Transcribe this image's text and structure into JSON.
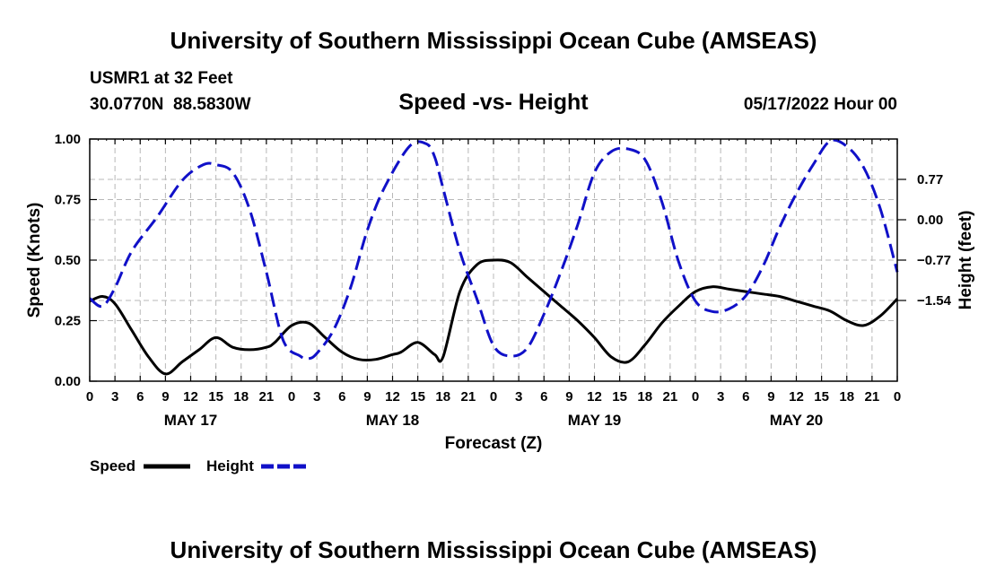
{
  "header": {
    "title": "University of Southern Mississippi Ocean Cube (AMSEAS)",
    "station": "USMR1 at 32 Feet",
    "coords": "30.0770N  88.5830W",
    "subtitle": "Speed -vs- Height",
    "datetime": "05/17/2022 Hour 00"
  },
  "footer": {
    "title": "University of Southern Mississippi Ocean Cube (AMSEAS)"
  },
  "chart_data": {
    "type": "line",
    "title": "Speed -vs- Height",
    "xlabel": "Forecast (Z)",
    "ylabel": "Speed (Knots)",
    "y2label": "Height (feet)",
    "xlim": [
      0,
      96
    ],
    "ylim": [
      0,
      1
    ],
    "y2lim": [
      -3.08,
      1.54
    ],
    "grid": true,
    "x_tick_labels": [
      "0",
      "3",
      "6",
      "9",
      "12",
      "15",
      "18",
      "21",
      "0",
      "3",
      "6",
      "9",
      "12",
      "15",
      "18",
      "21",
      "0",
      "3",
      "6",
      "9",
      "12",
      "15",
      "18",
      "21",
      "0",
      "3",
      "6",
      "9",
      "12",
      "15",
      "18",
      "21",
      "0"
    ],
    "day_labels": [
      {
        "label": "MAY 17",
        "hour": 12
      },
      {
        "label": "MAY 18",
        "hour": 36
      },
      {
        "label": "MAY 19",
        "hour": 60
      },
      {
        "label": "MAY 20",
        "hour": 84
      }
    ],
    "y_ticks": [
      {
        "value": 0.0,
        "label": "0.00"
      },
      {
        "value": 0.25,
        "label": "0.25"
      },
      {
        "value": 0.5,
        "label": "0.50"
      },
      {
        "value": 0.75,
        "label": "0.75"
      },
      {
        "value": 1.0,
        "label": "1.00"
      }
    ],
    "y2_ticks": [
      {
        "value": 0.77,
        "label": "0.77"
      },
      {
        "value": 0.0,
        "label": "0.00"
      },
      {
        "value": -0.77,
        "label": "−0.77"
      },
      {
        "value": -1.54,
        "label": "−1.54"
      }
    ],
    "legend": [
      {
        "name": "Speed",
        "color": "#000000",
        "dash": "solid"
      },
      {
        "name": "Height",
        "color": "#1010c8",
        "dash": "dashed"
      }
    ],
    "series": [
      {
        "name": "Speed",
        "axis": "left",
        "color": "#000000",
        "x": [
          0,
          1.5,
          3,
          5,
          7,
          9,
          11,
          13,
          15,
          17,
          19,
          21,
          22,
          24,
          26,
          28,
          30,
          32,
          34,
          36,
          37,
          39,
          41,
          42,
          44,
          46,
          48,
          50,
          52,
          54,
          56,
          58,
          60,
          62,
          64,
          66,
          68,
          70,
          72,
          74,
          76,
          78,
          80,
          82,
          84,
          86,
          88,
          90,
          92,
          94,
          96
        ],
        "values": [
          0.33,
          0.35,
          0.32,
          0.21,
          0.1,
          0.03,
          0.08,
          0.13,
          0.18,
          0.14,
          0.13,
          0.14,
          0.16,
          0.23,
          0.24,
          0.18,
          0.12,
          0.09,
          0.09,
          0.11,
          0.12,
          0.16,
          0.11,
          0.1,
          0.37,
          0.48,
          0.5,
          0.49,
          0.43,
          0.37,
          0.31,
          0.25,
          0.18,
          0.1,
          0.08,
          0.15,
          0.24,
          0.31,
          0.37,
          0.39,
          0.38,
          0.37,
          0.36,
          0.35,
          0.33,
          0.31,
          0.29,
          0.25,
          0.23,
          0.27,
          0.34
        ]
      },
      {
        "name": "Height",
        "axis": "right",
        "color": "#1010c8",
        "x": [
          0,
          1.5,
          3,
          5,
          8,
          11,
          13.5,
          15,
          17,
          19,
          21,
          23,
          25,
          26,
          27,
          29,
          31,
          33,
          35,
          38,
          40,
          41,
          42,
          44,
          46,
          48,
          50,
          52,
          54,
          56,
          58,
          60,
          62,
          64,
          66,
          68,
          70,
          72,
          74,
          76,
          78,
          80,
          82,
          84,
          86,
          88,
          90,
          92,
          94,
          96
        ],
        "values": [
          -1.5,
          -1.65,
          -1.3,
          -0.6,
          0.05,
          0.75,
          1.05,
          1.05,
          0.9,
          0.2,
          -1.0,
          -2.3,
          -2.6,
          -2.65,
          -2.55,
          -2.1,
          -1.3,
          -0.2,
          0.6,
          1.4,
          1.45,
          1.2,
          0.6,
          -0.6,
          -1.5,
          -2.4,
          -2.6,
          -2.45,
          -1.8,
          -1.0,
          -0.1,
          0.9,
          1.3,
          1.35,
          1.15,
          0.35,
          -0.8,
          -1.55,
          -1.75,
          -1.7,
          -1.45,
          -0.9,
          -0.15,
          0.5,
          1.05,
          1.5,
          1.4,
          1.0,
          0.2,
          -1.0
        ]
      }
    ]
  }
}
